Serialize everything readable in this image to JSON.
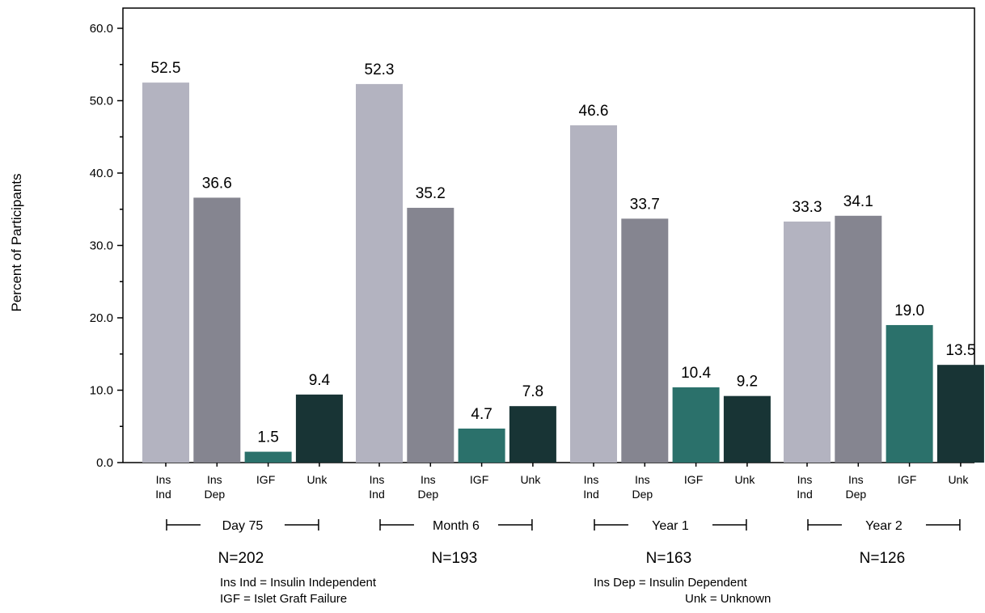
{
  "chart_data": {
    "type": "bar",
    "ylabel": "Percent of Participants",
    "ylim": [
      0,
      60
    ],
    "yticks": [
      "0.0",
      "10.0",
      "20.0",
      "30.0",
      "40.0",
      "50.0",
      "60.0"
    ],
    "grid": false,
    "bar_colors": [
      "#b3b3c0",
      "#858590",
      "#2b716b",
      "#183435"
    ],
    "groups": [
      {
        "label": "Day 75",
        "n": "N=202",
        "bars": [
          {
            "cat": [
              "Ins",
              "Ind"
            ],
            "value": 52.5,
            "label": "52.5"
          },
          {
            "cat": [
              "Ins",
              "Dep"
            ],
            "value": 36.6,
            "label": "36.6"
          },
          {
            "cat": [
              "IGF"
            ],
            "value": 1.5,
            "label": "1.5"
          },
          {
            "cat": [
              "Unk"
            ],
            "value": 9.4,
            "label": "9.4"
          }
        ]
      },
      {
        "label": "Month 6",
        "n": "N=193",
        "bars": [
          {
            "cat": [
              "Ins",
              "Ind"
            ],
            "value": 52.3,
            "label": "52.3"
          },
          {
            "cat": [
              "Ins",
              "Dep"
            ],
            "value": 35.2,
            "label": "35.2"
          },
          {
            "cat": [
              "IGF"
            ],
            "value": 4.7,
            "label": "4.7"
          },
          {
            "cat": [
              "Unk"
            ],
            "value": 7.8,
            "label": "7.8"
          }
        ]
      },
      {
        "label": "Year 1",
        "n": "N=163",
        "bars": [
          {
            "cat": [
              "Ins",
              "Ind"
            ],
            "value": 46.6,
            "label": "46.6"
          },
          {
            "cat": [
              "Ins",
              "Dep"
            ],
            "value": 33.7,
            "label": "33.7"
          },
          {
            "cat": [
              "IGF"
            ],
            "value": 10.4,
            "label": "10.4"
          },
          {
            "cat": [
              "Unk"
            ],
            "value": 9.2,
            "label": "9.2"
          }
        ]
      },
      {
        "label": "Year 2",
        "n": "N=126",
        "bars": [
          {
            "cat": [
              "Ins",
              "Ind"
            ],
            "value": 33.3,
            "label": "33.3"
          },
          {
            "cat": [
              "Ins",
              "Dep"
            ],
            "value": 34.1,
            "label": "34.1"
          },
          {
            "cat": [
              "IGF"
            ],
            "value": 19.0,
            "label": "19.0"
          },
          {
            "cat": [
              "Unk"
            ],
            "value": 13.5,
            "label": "13.5"
          }
        ]
      }
    ],
    "legend": [
      "Ins Ind = Insulin Independent",
      "IGF = Islet Graft Failure",
      "Ins Dep = Insulin Dependent",
      "Unk = Unknown"
    ]
  }
}
